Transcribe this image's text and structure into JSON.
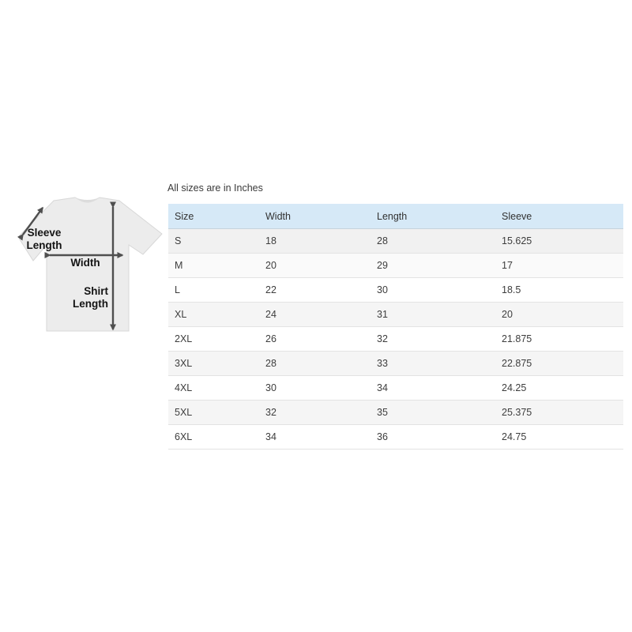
{
  "note": "All sizes are in Inches",
  "diagram": {
    "sleeve_label": [
      "Sleeve",
      "Length"
    ],
    "width_label": "Width",
    "shirt_label": [
      "Shirt",
      "Length"
    ]
  },
  "chart_data": {
    "type": "table",
    "title": "All sizes are in Inches",
    "columns": [
      "Size",
      "Width",
      "Length",
      "Sleeve"
    ],
    "rows": [
      [
        "S",
        18,
        28,
        15.625
      ],
      [
        "M",
        20,
        29,
        17
      ],
      [
        "L",
        22,
        30,
        18.5
      ],
      [
        "XL",
        24,
        31,
        20
      ],
      [
        "2XL",
        26,
        32,
        21.875
      ],
      [
        "3XL",
        28,
        33,
        22.875
      ],
      [
        "4XL",
        30,
        34,
        24.25
      ],
      [
        "5XL",
        32,
        35,
        25.375
      ],
      [
        "6XL",
        34,
        36,
        24.75
      ]
    ]
  },
  "colors": {
    "table_header_bg": "#d6e9f7",
    "row_stripe": "#f5f5f5",
    "arrow": "#4f4f4f",
    "shirt_fill": "#ececec"
  }
}
